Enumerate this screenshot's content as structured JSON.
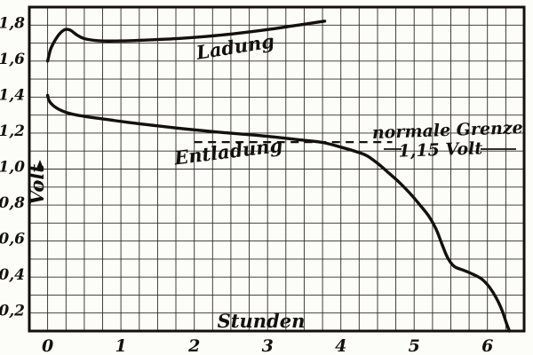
{
  "figure": {
    "paper": "#fcfcf9",
    "ink": "#14110d"
  },
  "chart_data": {
    "type": "line",
    "title": "",
    "xlabel": "Stunden",
    "ylabel": "Volt",
    "xlim": [
      -0.25,
      6.5
    ],
    "ylim": [
      0.1,
      1.9
    ],
    "grid": {
      "on": true,
      "x_step": 0.25,
      "y_step": 0.1
    },
    "x_ticks": [
      0,
      1,
      2,
      3,
      4,
      5,
      6
    ],
    "x_tick_labels": [
      "0",
      "1",
      "2",
      "3",
      "4",
      "5",
      "6"
    ],
    "y_ticks": [
      1.8,
      1.6,
      1.4,
      1.2,
      1.0,
      0.8,
      0.6,
      0.4,
      0.2
    ],
    "y_tick_labels": [
      "1,8",
      "1,6",
      "1,4",
      "1,2",
      "1,0",
      "0,8",
      "0,6",
      "0,4",
      "0,2"
    ],
    "series": [
      {
        "name": "Ladung",
        "points": [
          [
            0,
            1.6
          ],
          [
            0.04,
            1.665
          ],
          [
            0.1,
            1.715
          ],
          [
            0.17,
            1.755
          ],
          [
            0.24,
            1.775
          ],
          [
            0.31,
            1.772
          ],
          [
            0.4,
            1.745
          ],
          [
            0.5,
            1.725
          ],
          [
            0.7,
            1.713
          ],
          [
            1.0,
            1.712
          ],
          [
            1.4,
            1.718
          ],
          [
            1.8,
            1.726
          ],
          [
            2.2,
            1.738
          ],
          [
            2.6,
            1.755
          ],
          [
            3.0,
            1.775
          ],
          [
            3.3,
            1.793
          ],
          [
            3.55,
            1.808
          ],
          [
            3.78,
            1.822
          ]
        ]
      },
      {
        "name": "Entladung",
        "points": [
          [
            0,
            1.41
          ],
          [
            0.02,
            1.38
          ],
          [
            0.07,
            1.355
          ],
          [
            0.14,
            1.335
          ],
          [
            0.25,
            1.315
          ],
          [
            0.4,
            1.3
          ],
          [
            0.6,
            1.287
          ],
          [
            0.85,
            1.273
          ],
          [
            1.15,
            1.257
          ],
          [
            1.5,
            1.24
          ],
          [
            1.9,
            1.222
          ],
          [
            2.3,
            1.206
          ],
          [
            2.7,
            1.193
          ],
          [
            3.1,
            1.178
          ],
          [
            3.45,
            1.162
          ],
          [
            3.75,
            1.148
          ],
          [
            4.0,
            1.122
          ],
          [
            4.2,
            1.098
          ],
          [
            4.35,
            1.075
          ],
          [
            4.5,
            1.032
          ],
          [
            4.65,
            0.98
          ],
          [
            4.8,
            0.925
          ],
          [
            4.95,
            0.862
          ],
          [
            5.08,
            0.8
          ],
          [
            5.2,
            0.738
          ],
          [
            5.3,
            0.665
          ],
          [
            5.38,
            0.582
          ],
          [
            5.46,
            0.505
          ],
          [
            5.55,
            0.458
          ],
          [
            5.68,
            0.437
          ],
          [
            5.82,
            0.412
          ],
          [
            5.93,
            0.386
          ],
          [
            6.03,
            0.342
          ],
          [
            6.12,
            0.284
          ],
          [
            6.2,
            0.214
          ],
          [
            6.26,
            0.142
          ],
          [
            6.3,
            0.1
          ]
        ]
      }
    ],
    "annotations": {
      "threshold": {
        "value": 1.15,
        "x_start": 2.0,
        "x_end": 4.7,
        "style": "dashed",
        "label_line1": "normale Grenze",
        "label_line2": "1,15 Volt"
      }
    },
    "legend": "labels drawn next to curves"
  }
}
